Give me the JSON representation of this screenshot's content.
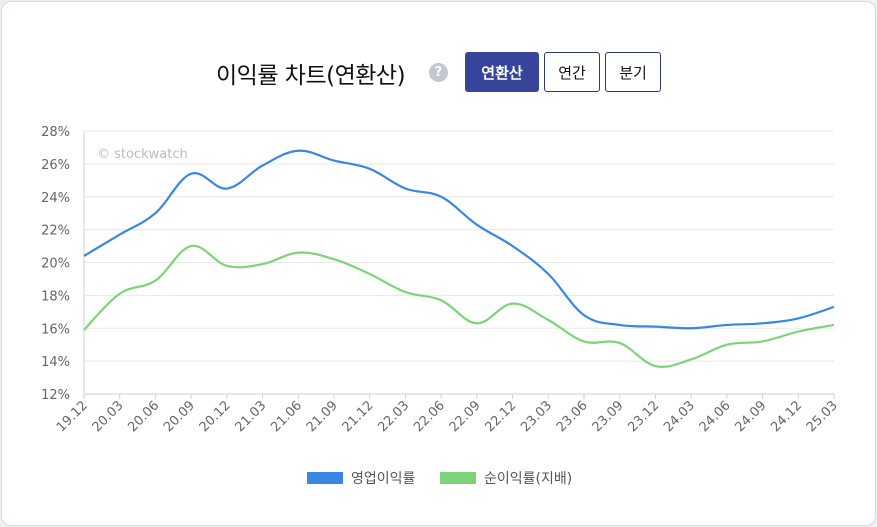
{
  "header": {
    "title": "이익률 차트(연환산)",
    "help_symbol": "?",
    "tabs": [
      {
        "label": "연환산",
        "active": true
      },
      {
        "label": "연간",
        "active": false
      },
      {
        "label": "분기",
        "active": false
      }
    ]
  },
  "watermark": "© stockwatch",
  "colors": {
    "operating": "#3a86e4",
    "net": "#7dd378",
    "active_tab": "#37449a"
  },
  "chart_data": {
    "type": "line",
    "title": "이익률 차트(연환산)",
    "xlabel": "",
    "ylabel": "",
    "ylim": [
      12,
      28
    ],
    "yticks": [
      "12%",
      "14%",
      "16%",
      "18%",
      "20%",
      "22%",
      "24%",
      "26%",
      "28%"
    ],
    "grid": true,
    "legend_position": "bottom",
    "categories": [
      "19.12",
      "20.03",
      "20.06",
      "20.09",
      "20.12",
      "21.03",
      "21.06",
      "21.09",
      "21.12",
      "22.03",
      "22.06",
      "22.09",
      "22.12",
      "23.03",
      "23.06",
      "23.09",
      "23.12",
      "24.03",
      "24.06",
      "24.09",
      "24.12",
      "25.03"
    ],
    "series": [
      {
        "name": "영업이익률",
        "color": "#3a86e4",
        "values": [
          20.4,
          21.7,
          23.0,
          25.4,
          24.5,
          25.9,
          26.8,
          26.2,
          25.7,
          24.5,
          24.0,
          22.3,
          21.0,
          19.3,
          16.8,
          16.2,
          16.1,
          16.0,
          16.2,
          16.3,
          16.6,
          17.3
        ]
      },
      {
        "name": "순이익률(지배)",
        "color": "#7dd378",
        "values": [
          15.9,
          18.1,
          18.9,
          21.0,
          19.8,
          19.9,
          20.6,
          20.2,
          19.3,
          18.2,
          17.7,
          16.3,
          17.5,
          16.5,
          15.2,
          15.1,
          13.7,
          14.1,
          15.0,
          15.2,
          15.8,
          16.2
        ]
      }
    ]
  }
}
